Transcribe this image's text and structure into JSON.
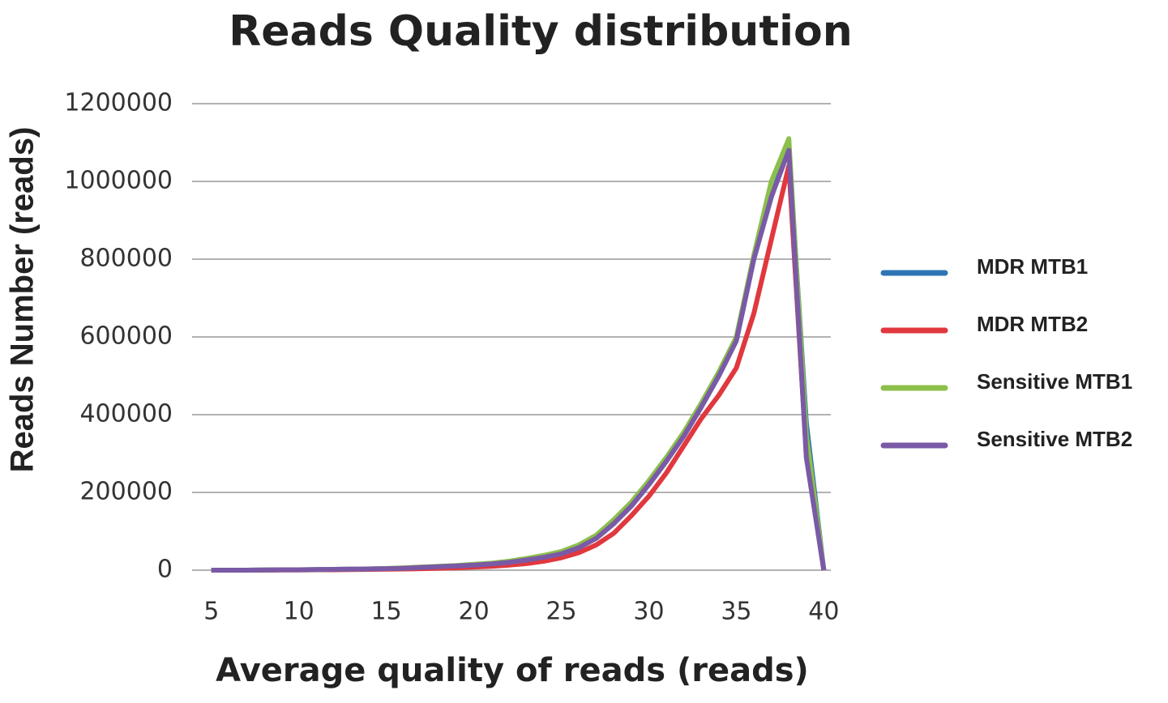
{
  "chart_data": {
    "type": "line",
    "title": "Reads Quality distribution",
    "x_label": "Average quality of reads (reads)",
    "y_label": "Reads Number (reads)",
    "x": [
      5,
      6,
      7,
      8,
      9,
      10,
      11,
      12,
      13,
      14,
      15,
      16,
      17,
      18,
      19,
      20,
      21,
      22,
      23,
      24,
      25,
      26,
      27,
      28,
      29,
      30,
      31,
      32,
      33,
      34,
      35,
      36,
      37,
      38,
      39,
      40
    ],
    "series": [
      {
        "name": "MDR MTB1",
        "color": "#2f75b5",
        "values": [
          0,
          0,
          0,
          500,
          1000,
          1000,
          1500,
          2000,
          2500,
          3000,
          4000,
          5000,
          7000,
          9000,
          11000,
          13000,
          16000,
          20000,
          26000,
          33000,
          42000,
          58000,
          82000,
          120000,
          165000,
          220000,
          280000,
          345000,
          420000,
          500000,
          590000,
          800000,
          960000,
          1090000,
          380000,
          0
        ]
      },
      {
        "name": "MDR MTB2",
        "color": "#e0383e",
        "values": [
          0,
          0,
          0,
          0,
          500,
          500,
          1000,
          1000,
          1500,
          2000,
          2500,
          3000,
          4000,
          5000,
          6000,
          8000,
          10000,
          13000,
          17000,
          23000,
          32000,
          45000,
          65000,
          95000,
          140000,
          190000,
          250000,
          320000,
          390000,
          450000,
          520000,
          660000,
          850000,
          1040000,
          300000,
          0
        ]
      },
      {
        "name": "Sensitive MTB1",
        "color": "#8cc04a",
        "values": [
          0,
          0,
          0,
          500,
          1000,
          1000,
          1500,
          2000,
          2500,
          3500,
          4500,
          6000,
          8000,
          10000,
          12000,
          15000,
          18000,
          23000,
          30000,
          38000,
          48000,
          65000,
          90000,
          130000,
          175000,
          230000,
          290000,
          355000,
          430000,
          510000,
          600000,
          810000,
          1000000,
          1110000,
          350000,
          0
        ]
      },
      {
        "name": "Sensitive MTB2",
        "color": "#7a5aa6",
        "values": [
          0,
          0,
          0,
          500,
          1000,
          1000,
          1500,
          2000,
          2500,
          3000,
          4000,
          5000,
          7000,
          9000,
          11000,
          13000,
          16000,
          20000,
          26000,
          33000,
          42000,
          58000,
          82000,
          120000,
          165000,
          220000,
          280000,
          345000,
          420000,
          500000,
          590000,
          800000,
          960000,
          1080000,
          290000,
          0
        ]
      }
    ],
    "xlim": [
      3.9,
      40.4
    ],
    "xticks": [
      5,
      10,
      15,
      20,
      25,
      30,
      35,
      40
    ],
    "ylim": [
      0,
      1200000
    ],
    "yticks": [
      0,
      200000,
      400000,
      600000,
      800000,
      1000000,
      1200000
    ],
    "grid": true,
    "legend": "right"
  }
}
